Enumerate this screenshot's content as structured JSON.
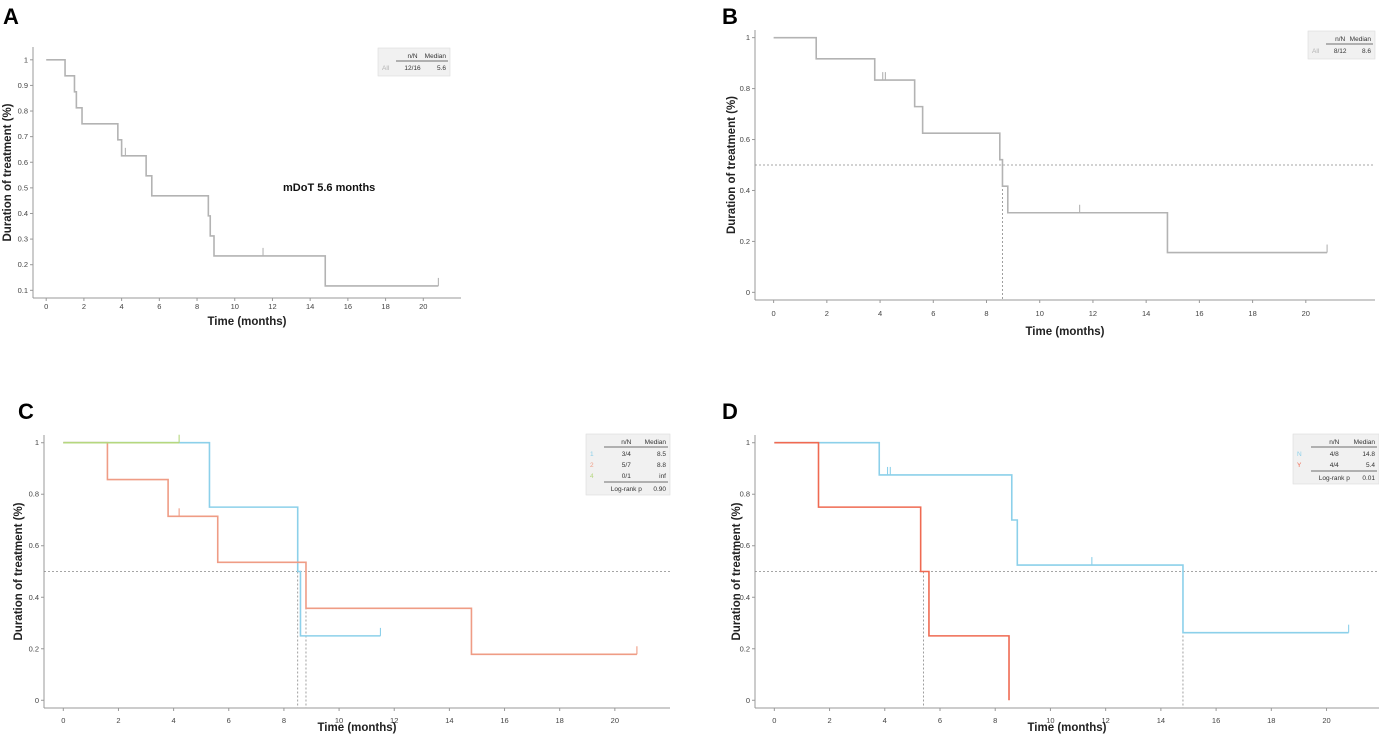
{
  "colors": {
    "All": "#b3b3b3",
    "1": "#8cd0ea",
    "2": "#ef9c85",
    "4": "#b5d77f",
    "N": "#8cd0ea",
    "Y": "#ef6a52",
    "axis": "#999999"
  },
  "chart_data": [
    {
      "type": "line",
      "panel": "A",
      "xlabel": "Time (months)",
      "ylabel": "Duration of treatment (%)",
      "xlim": [
        -0.7,
        22
      ],
      "ylim": [
        0.07,
        1.05
      ],
      "xticks": [
        0,
        2,
        4,
        6,
        8,
        10,
        12,
        14,
        16,
        18,
        20
      ],
      "yticks": [
        0.1,
        0.2,
        0.3,
        0.4,
        0.5,
        0.6,
        0.7,
        0.8,
        0.9,
        1
      ],
      "ytick_labels": [
        "0.1",
        "0.2",
        "0.3",
        "0.4",
        "0.5",
        "0.6",
        "0.7",
        "0.8",
        "0.9",
        "1"
      ],
      "annotation": "mDoT 5.6 months",
      "legend": {
        "headers": [
          "",
          "n/N",
          "Median"
        ],
        "rows": [
          [
            "All",
            "12/16",
            "5.6"
          ]
        ],
        "footer": null
      },
      "median_line": null,
      "series": [
        {
          "name": "All",
          "steps": [
            [
              0,
              1
            ],
            [
              1.0,
              0.9375
            ],
            [
              1.5,
              0.875
            ],
            [
              1.6,
              0.8125
            ],
            [
              1.9,
              0.75
            ],
            [
              3.8,
              0.6875
            ],
            [
              4.0,
              0.625
            ],
            [
              5.3,
              0.5469
            ],
            [
              5.6,
              0.4688
            ],
            [
              8.6,
              0.3906
            ],
            [
              8.7,
              0.3125
            ],
            [
              8.9,
              0.2344
            ],
            [
              14.8,
              0.1172
            ],
            [
              20.8,
              0.1172
            ]
          ],
          "censor": [
            [
              4.2,
              0.625
            ],
            [
              11.5,
              0.2344
            ],
            [
              20.8,
              0.1172
            ]
          ]
        }
      ]
    },
    {
      "type": "line",
      "panel": "B",
      "xlabel": "Time (months)",
      "ylabel": "Duration of treatment (%)",
      "xlim": [
        -0.7,
        22.6
      ],
      "ylim": [
        -0.03,
        1.03
      ],
      "xticks": [
        0,
        2,
        4,
        6,
        8,
        10,
        12,
        14,
        16,
        18,
        20
      ],
      "yticks": [
        0,
        0.2,
        0.4,
        0.6,
        0.8,
        1
      ],
      "ytick_labels": [
        "0",
        "0.2",
        "0.4",
        "0.6",
        "0.8",
        "1"
      ],
      "annotation": null,
      "legend": {
        "headers": [
          "",
          "n/N",
          "Median"
        ],
        "rows": [
          [
            "All",
            "8/12",
            "8.6"
          ]
        ],
        "footer": null
      },
      "median_line": {
        "y": 0.5,
        "x": [
          8.6
        ]
      },
      "series": [
        {
          "name": "All",
          "steps": [
            [
              0,
              1
            ],
            [
              1.6,
              0.9167
            ],
            [
              3.8,
              0.8333
            ],
            [
              5.3,
              0.7292
            ],
            [
              5.6,
              0.625
            ],
            [
              8.5,
              0.5208
            ],
            [
              8.6,
              0.4167
            ],
            [
              8.8,
              0.3125
            ],
            [
              14.8,
              0.1563
            ],
            [
              20.8,
              0.1563
            ]
          ],
          "censor": [
            [
              4.1,
              0.8333
            ],
            [
              4.2,
              0.8333
            ],
            [
              11.5,
              0.3125
            ],
            [
              20.8,
              0.1563
            ]
          ]
        }
      ]
    },
    {
      "type": "line",
      "panel": "C",
      "xlabel": "Time (months)",
      "ylabel": "Duration of treatment (%)",
      "xlim": [
        -0.7,
        22
      ],
      "ylim": [
        -0.03,
        1.03
      ],
      "xticks": [
        0,
        2,
        4,
        6,
        8,
        10,
        12,
        14,
        16,
        18,
        20
      ],
      "yticks": [
        0,
        0.2,
        0.4,
        0.6,
        0.8,
        1
      ],
      "ytick_labels": [
        "0",
        "0.2",
        "0.4",
        "0.6",
        "0.8",
        "1"
      ],
      "annotation": null,
      "legend": {
        "headers": [
          "",
          "n/N",
          "Median"
        ],
        "rows": [
          [
            "1",
            "3/4",
            "8.5"
          ],
          [
            "2",
            "5/7",
            "8.8"
          ],
          [
            "4",
            "0/1",
            "inf"
          ]
        ],
        "footer": [
          "Log-rank p",
          "0.90"
        ]
      },
      "median_line": {
        "y": 0.5,
        "x": [
          8.5,
          8.8
        ]
      },
      "series": [
        {
          "name": "1",
          "steps": [
            [
              0,
              1
            ],
            [
              5.3,
              0.75
            ],
            [
              8.5,
              0.5
            ],
            [
              8.6,
              0.25
            ],
            [
              11.5,
              0.25
            ]
          ],
          "censor": [
            [
              11.5,
              0.25
            ]
          ]
        },
        {
          "name": "2",
          "steps": [
            [
              0,
              1
            ],
            [
              1.6,
              0.8571
            ],
            [
              3.8,
              0.7143
            ],
            [
              5.6,
              0.5357
            ],
            [
              8.8,
              0.3571
            ],
            [
              14.8,
              0.1786
            ],
            [
              20.8,
              0.1786
            ]
          ],
          "censor": [
            [
              4.2,
              0.7143
            ],
            [
              20.8,
              0.1786
            ]
          ]
        },
        {
          "name": "4",
          "steps": [
            [
              0,
              1
            ],
            [
              4.2,
              1
            ]
          ],
          "censor": [
            [
              4.2,
              1
            ]
          ]
        }
      ]
    },
    {
      "type": "line",
      "panel": "D",
      "xlabel": "Time (months)",
      "ylabel": "Duration of treatment (%)",
      "xlim": [
        -0.7,
        21.9
      ],
      "ylim": [
        -0.03,
        1.03
      ],
      "xticks": [
        0,
        2,
        4,
        6,
        8,
        10,
        12,
        14,
        16,
        18,
        20
      ],
      "yticks": [
        0,
        0.2,
        0.4,
        0.6,
        0.8,
        1
      ],
      "ytick_labels": [
        "0",
        "0.2",
        "0.4",
        "0.6",
        "0.8",
        "1"
      ],
      "annotation": null,
      "legend": {
        "headers": [
          "",
          "n/N",
          "Median"
        ],
        "rows": [
          [
            "N",
            "4/8",
            "14.8"
          ],
          [
            "Y",
            "4/4",
            "5.4"
          ]
        ],
        "footer": [
          "Log-rank p",
          "0.01"
        ]
      },
      "median_line": {
        "y": 0.5,
        "x": [
          5.4,
          14.8
        ]
      },
      "series": [
        {
          "name": "N",
          "steps": [
            [
              0,
              1
            ],
            [
              3.8,
              0.875
            ],
            [
              8.6,
              0.7
            ],
            [
              8.8,
              0.525
            ],
            [
              14.8,
              0.2625
            ],
            [
              20.8,
              0.2625
            ]
          ],
          "censor": [
            [
              4.1,
              0.875
            ],
            [
              4.2,
              0.875
            ],
            [
              11.5,
              0.525
            ],
            [
              20.8,
              0.2625
            ]
          ]
        },
        {
          "name": "Y",
          "steps": [
            [
              0,
              1
            ],
            [
              1.6,
              0.75
            ],
            [
              5.3,
              0.5
            ],
            [
              5.6,
              0.25
            ],
            [
              8.5,
              0
            ]
          ],
          "censor": []
        }
      ]
    }
  ]
}
